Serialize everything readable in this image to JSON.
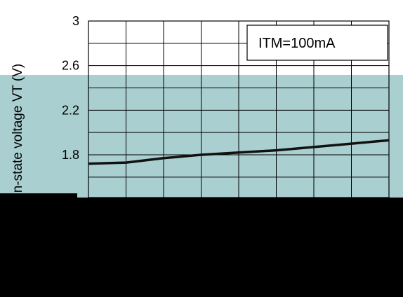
{
  "colors": {
    "background": "#ffffff",
    "teal_band": "#a9cfd0",
    "black_block": "#000000",
    "grid": "#000000",
    "series_line": "#111111"
  },
  "chart_data": {
    "type": "line",
    "ylabel": "On-state voltage VT (V)",
    "xlabel": "",
    "ylim": [
      1.4,
      3.0
    ],
    "yticks": [
      {
        "value": 3.0,
        "label": "3"
      },
      {
        "value": 2.6,
        "label": "2.6"
      },
      {
        "value": 2.2,
        "label": "2.2"
      },
      {
        "value": 1.8,
        "label": "1.8"
      }
    ],
    "xlim": [
      0,
      8
    ],
    "grid": true,
    "annotation": "ITM=100mA",
    "series": [
      {
        "x": [
          0,
          1,
          2,
          3,
          4,
          5,
          6,
          7,
          8
        ],
        "values": [
          1.72,
          1.73,
          1.77,
          1.8,
          1.82,
          1.84,
          1.87,
          1.9,
          1.93
        ]
      }
    ]
  }
}
